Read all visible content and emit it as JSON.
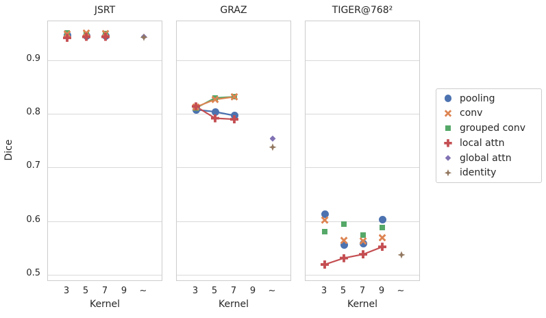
{
  "chart_data": {
    "type": "scatter",
    "title": "",
    "ylabel": "Dice",
    "xlabel": "Kernel",
    "x_tick_labels": [
      "3",
      "5",
      "7",
      "9",
      "~"
    ],
    "y_ticks": [
      0.5,
      0.6,
      0.7,
      0.8,
      0.9
    ],
    "ylim": [
      0.487,
      0.973
    ],
    "grid": "horizontal-only",
    "legend_position": "right-outside",
    "legend": [
      {
        "label": "pooling",
        "marker": "circle",
        "color": "#4c72b0"
      },
      {
        "label": "conv",
        "marker": "x",
        "color": "#dd8452"
      },
      {
        "label": "grouped conv",
        "marker": "square",
        "color": "#55a868"
      },
      {
        "label": "local attn",
        "marker": "plus",
        "color": "#c44e52"
      },
      {
        "label": "global attn",
        "marker": "diamond",
        "color": "#8172b3"
      },
      {
        "label": "identity",
        "marker": "thin-diamond",
        "color": "#937860"
      }
    ],
    "panels": [
      {
        "title": "JSRT",
        "series": [
          {
            "name": "pooling",
            "line": false,
            "points": [
              [
                0,
                0.947
              ],
              [
                1,
                0.945
              ],
              [
                2,
                0.946
              ]
            ]
          },
          {
            "name": "grouped conv",
            "line": false,
            "points": [
              [
                0,
                0.951
              ],
              [
                1,
                0.949
              ],
              [
                2,
                0.95
              ]
            ]
          },
          {
            "name": "conv",
            "line": false,
            "points": [
              [
                0,
                0.949
              ],
              [
                1,
                0.951
              ],
              [
                2,
                0.95
              ]
            ]
          },
          {
            "name": "local attn",
            "line": false,
            "points": [
              [
                0,
                0.942
              ],
              [
                1,
                0.944
              ],
              [
                2,
                0.944
              ]
            ]
          },
          {
            "name": "global attn",
            "line": false,
            "points": [
              [
                4,
                0.944
              ]
            ]
          },
          {
            "name": "identity",
            "line": false,
            "points": [
              [
                4,
                0.943
              ]
            ]
          }
        ]
      },
      {
        "title": "GRAZ",
        "series": [
          {
            "name": "pooling",
            "line": true,
            "points": [
              [
                0,
                0.808
              ],
              [
                1,
                0.804
              ],
              [
                2,
                0.797
              ]
            ]
          },
          {
            "name": "grouped conv",
            "line": true,
            "points": [
              [
                0,
                0.811
              ],
              [
                1,
                0.83
              ],
              [
                2,
                0.832
              ]
            ]
          },
          {
            "name": "conv",
            "line": true,
            "points": [
              [
                0,
                0.813
              ],
              [
                1,
                0.827
              ],
              [
                2,
                0.832
              ]
            ]
          },
          {
            "name": "local attn",
            "line": true,
            "points": [
              [
                0,
                0.814
              ],
              [
                1,
                0.792
              ],
              [
                2,
                0.79
              ]
            ]
          },
          {
            "name": "global attn",
            "line": false,
            "points": [
              [
                4,
                0.754
              ]
            ]
          },
          {
            "name": "identity",
            "line": false,
            "points": [
              [
                4,
                0.738
              ]
            ]
          }
        ]
      },
      {
        "title": "TIGER@768²",
        "series": [
          {
            "name": "pooling",
            "line": false,
            "points": [
              [
                0,
                0.613
              ],
              [
                1,
                0.556
              ],
              [
                2,
                0.558
              ],
              [
                3,
                0.603
              ]
            ]
          },
          {
            "name": "grouped conv",
            "line": false,
            "points": [
              [
                0,
                0.581
              ],
              [
                1,
                0.594
              ],
              [
                2,
                0.574
              ],
              [
                3,
                0.588
              ]
            ]
          },
          {
            "name": "conv",
            "line": false,
            "points": [
              [
                0,
                0.602
              ],
              [
                1,
                0.564
              ],
              [
                2,
                0.563
              ],
              [
                3,
                0.569
              ]
            ]
          },
          {
            "name": "local attn",
            "line": true,
            "points": [
              [
                0,
                0.519
              ],
              [
                1,
                0.531
              ],
              [
                2,
                0.538
              ],
              [
                3,
                0.552
              ]
            ]
          },
          {
            "name": "identity",
            "line": false,
            "points": [
              [
                4,
                0.537
              ]
            ]
          }
        ]
      }
    ]
  }
}
